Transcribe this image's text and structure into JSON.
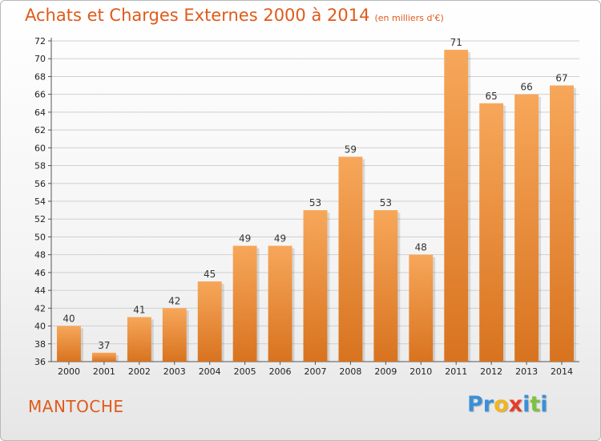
{
  "header": {
    "title": "Achats et Charges Externes 2000 à 2014",
    "subtitle": "(en milliers d'€)"
  },
  "footer": {
    "commune": "MANTOCHE",
    "logo_letters": [
      {
        "char": "P",
        "color": "#3a8fd8"
      },
      {
        "char": "r",
        "color": "#3a8fd8"
      },
      {
        "char": "o",
        "color": "#f2b51c"
      },
      {
        "char": "x",
        "color": "#e83a2b"
      },
      {
        "char": "i",
        "color": "#3a8fd8"
      },
      {
        "char": "t",
        "color": "#7cc241"
      },
      {
        "char": "i",
        "color": "#3a8fd8"
      }
    ]
  },
  "colors": {
    "title": "#e05a1a",
    "bar_light": "#f7a75a",
    "bar_dark": "#d8731f",
    "grid": "#d0d0d0"
  },
  "chart_data": {
    "type": "bar",
    "title": "Achats et Charges Externes 2000 à 2014",
    "subtitle": "(en milliers d'€)",
    "categories": [
      "2000",
      "2001",
      "2002",
      "2003",
      "2004",
      "2005",
      "2006",
      "2007",
      "2008",
      "2009",
      "2010",
      "2011",
      "2012",
      "2013",
      "2014"
    ],
    "values": [
      40,
      37,
      41,
      42,
      45,
      49,
      49,
      53,
      59,
      53,
      48,
      71,
      65,
      66,
      67
    ],
    "data_labels": [
      "40",
      "37",
      "41",
      "42",
      "45",
      "49",
      "49",
      "53",
      "59",
      "53",
      "48",
      "71",
      "65",
      "66",
      "67"
    ],
    "yticks": [
      "36",
      "38",
      "40",
      "42",
      "44",
      "46",
      "48",
      "50",
      "52",
      "54",
      "56",
      "58",
      "60",
      "62",
      "64",
      "66",
      "68",
      "70",
      "72"
    ],
    "ylim": [
      36,
      72
    ],
    "grid": true,
    "legend": "none"
  }
}
